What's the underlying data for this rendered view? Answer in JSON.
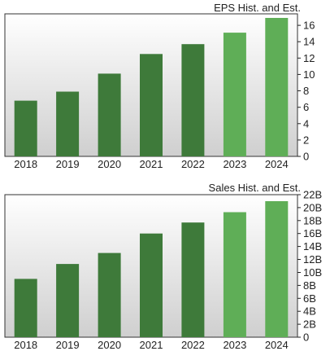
{
  "colors": {
    "actual": "#3e7a3a",
    "estimate": "#5fae57",
    "plot_bg_top": "#ffffff",
    "plot_bg_bottom": "#cfcfcf",
    "frame": "#333333",
    "tick": "#222222"
  },
  "chart_data": [
    {
      "type": "bar",
      "title": "EPS Hist. and Est.",
      "categories": [
        "2018",
        "2019",
        "2020",
        "2021",
        "2022",
        "2023",
        "2024"
      ],
      "values": [
        6.8,
        7.9,
        10.1,
        12.5,
        13.7,
        15.1,
        16.9
      ],
      "estimate_flags": [
        false,
        false,
        false,
        false,
        false,
        true,
        true
      ],
      "ylim": [
        0,
        17.4
      ],
      "yticks": [
        0,
        2,
        4,
        6,
        8,
        10,
        12,
        14,
        16
      ],
      "ytick_labels": [
        "0",
        "2",
        "4",
        "6",
        "8",
        "10",
        "12",
        "14",
        "16"
      ],
      "xlabel": "",
      "ylabel": "",
      "grid": false
    },
    {
      "type": "bar",
      "title": "Sales Hist. and Est.",
      "categories": [
        "2018",
        "2019",
        "2020",
        "2021",
        "2022",
        "2023",
        "2024"
      ],
      "values": [
        9000000000,
        11300000000,
        13000000000,
        16000000000,
        17700000000,
        19300000000,
        21000000000
      ],
      "estimate_flags": [
        false,
        false,
        false,
        false,
        false,
        true,
        true
      ],
      "ylim": [
        0,
        22000000000
      ],
      "yticks": [
        0,
        2000000000,
        4000000000,
        6000000000,
        8000000000,
        10000000000,
        12000000000,
        14000000000,
        16000000000,
        18000000000,
        20000000000,
        22000000000
      ],
      "ytick_labels": [
        "0",
        "2B",
        "4B",
        "6B",
        "8B",
        "10B",
        "12B",
        "14B",
        "16B",
        "18B",
        "20B",
        "22B"
      ],
      "xlabel": "",
      "ylabel": "",
      "grid": false
    }
  ]
}
